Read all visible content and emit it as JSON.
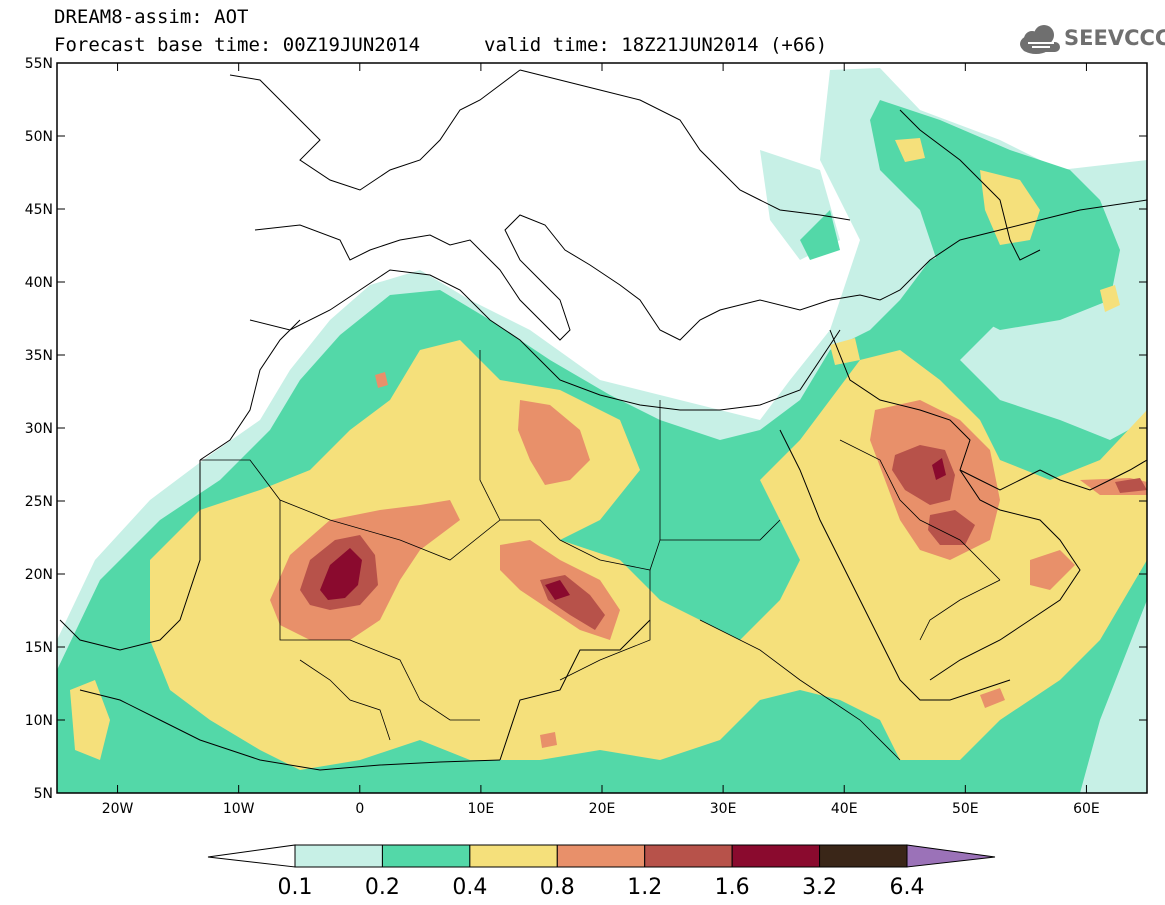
{
  "header": {
    "line1": "DREAM8-assim: AOT",
    "line2a": "Forecast base time: 00Z19JUN2014",
    "line2b": "valid time: 18Z21JUN2014 (+66)"
  },
  "logo": {
    "text": "SEEVCCC",
    "icon": "cloud-icon"
  },
  "map": {
    "lat_labels": [
      "55N",
      "50N",
      "45N",
      "40N",
      "35N",
      "30N",
      "25N",
      "20N",
      "15N",
      "10N",
      "5N"
    ],
    "lon_labels": [
      "20W",
      "10W",
      "0",
      "10E",
      "20E",
      "30E",
      "40E",
      "50E",
      "60E"
    ],
    "lon_range": [
      -25,
      65
    ],
    "lat_range": [
      5,
      55
    ],
    "projection": "lat-lon",
    "field": "aerosol optical thickness (AOT)"
  },
  "colorbar": {
    "levels": [
      "0.1",
      "0.2",
      "0.4",
      "0.8",
      "1.2",
      "1.6",
      "3.2",
      "6.4"
    ],
    "colors": [
      "#c7f0e6",
      "#53d8a8",
      "#f5e07b",
      "#e8906a",
      "#b7524a",
      "#8a0a2e",
      "#3a2618",
      "#9b72b8"
    ],
    "under_color": "#ffffff"
  }
}
